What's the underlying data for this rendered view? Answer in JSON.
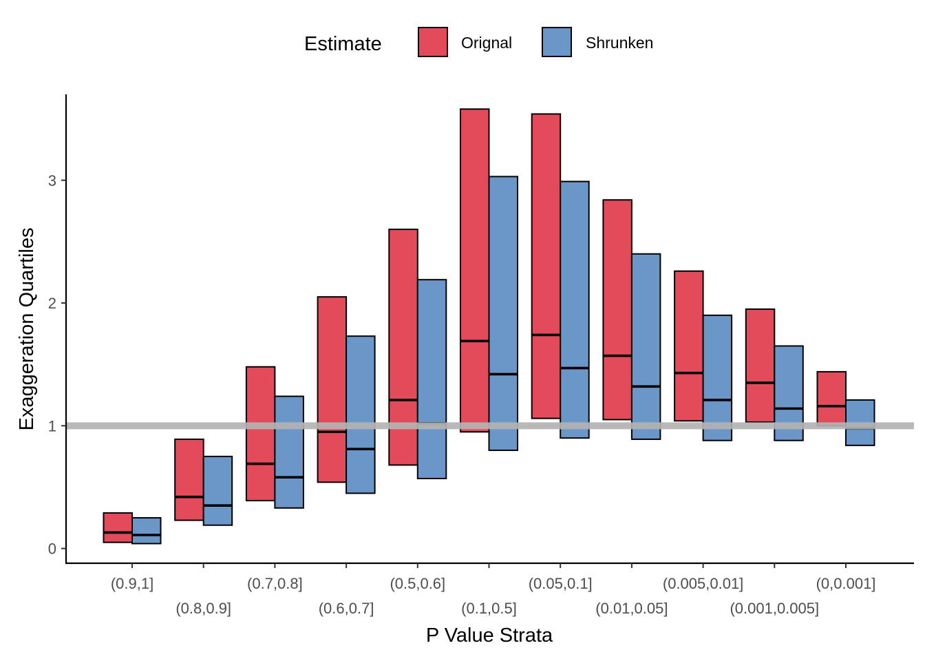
{
  "chart_data": {
    "type": "bar",
    "subtype": "floating-box (quartile range with median line)",
    "xlabel": "P Value Strata",
    "ylabel": "Exaggeration Quartiles",
    "ylim": [
      -0.12,
      3.7
    ],
    "yticks": [
      0,
      1,
      2,
      3
    ],
    "reference_line": {
      "y": 1,
      "color": "#b3b3b3"
    },
    "legend": {
      "title": "Estimate",
      "placement": "top"
    },
    "categories": [
      "(0.9,1]",
      "(0.8,0.9]",
      "(0.7,0.8]",
      "(0.6,0.7]",
      "(0.5,0.6]",
      "(0.1,0.5]",
      "(0.05,0.1]",
      "(0.01,0.05]",
      "(0.005,0.01]",
      "(0.001,0.005]",
      "(0,0.001]"
    ],
    "series": [
      {
        "name": "Orignal",
        "color": "#e34a5a",
        "q1": [
          0.05,
          0.23,
          0.39,
          0.54,
          0.68,
          0.95,
          1.06,
          1.05,
          1.04,
          1.03,
          1.0
        ],
        "median": [
          0.13,
          0.42,
          0.69,
          0.95,
          1.21,
          1.69,
          1.74,
          1.57,
          1.43,
          1.35,
          1.16
        ],
        "q3": [
          0.29,
          0.89,
          1.48,
          2.05,
          2.6,
          3.58,
          3.54,
          2.84,
          2.26,
          1.95,
          1.44
        ]
      },
      {
        "name": "Shrunken",
        "color": "#6a97c7",
        "q1": [
          0.04,
          0.19,
          0.33,
          0.45,
          0.57,
          0.8,
          0.9,
          0.89,
          0.88,
          0.88,
          0.84
        ],
        "median": [
          0.11,
          0.35,
          0.58,
          0.81,
          1.02,
          1.42,
          1.47,
          1.32,
          1.21,
          1.14,
          0.98
        ],
        "q3": [
          0.25,
          0.75,
          1.24,
          1.73,
          2.19,
          3.03,
          2.99,
          2.4,
          1.9,
          1.65,
          1.21
        ]
      }
    ]
  }
}
